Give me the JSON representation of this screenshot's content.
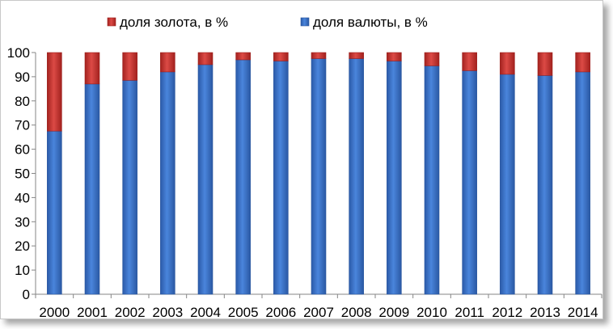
{
  "chart_data": {
    "type": "bar",
    "stacked": true,
    "categories": [
      "2000",
      "2001",
      "2002",
      "2003",
      "2004",
      "2005",
      "2006",
      "2007",
      "2008",
      "2009",
      "2010",
      "2011",
      "2012",
      "2013",
      "2014"
    ],
    "series": [
      {
        "name": "доля валюты, в %",
        "color": "#3a6fc4",
        "values": [
          67.5,
          87,
          88.5,
          92,
          95,
          97,
          96.5,
          97.5,
          97.5,
          96.5,
          94.5,
          92.5,
          91,
          90.5,
          92
        ]
      },
      {
        "name": "доля золота, в %",
        "color": "#c0302e",
        "values": [
          32.5,
          13,
          11.5,
          8,
          5,
          3,
          3.5,
          2.5,
          2.5,
          3.5,
          5.5,
          7.5,
          9,
          9.5,
          8
        ]
      }
    ],
    "legend_order": [
      "доля золота, в %",
      "доля валюты, в %"
    ],
    "legend_position": "top",
    "ylim": [
      0,
      100
    ],
    "yticks": [
      "0",
      "10",
      "20",
      "30",
      "40",
      "50",
      "60",
      "70",
      "80",
      "90",
      "100"
    ],
    "grid": false,
    "title": "",
    "xlabel": "",
    "ylabel": ""
  }
}
